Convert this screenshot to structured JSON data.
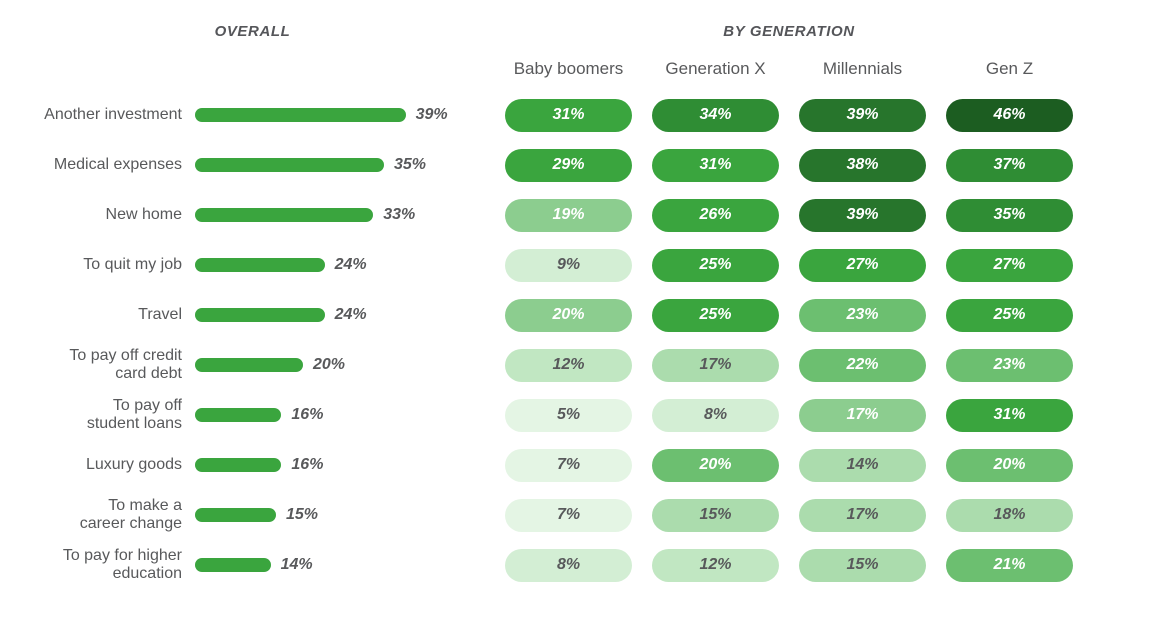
{
  "titles": {
    "overall": "OVERALL",
    "by_generation": "BY GENERATION"
  },
  "display_labels": [
    "Another investment",
    "Medical expenses",
    "New home",
    "To quit my job",
    "Travel",
    "To pay off credit\ncard debt",
    "To pay off\nstudent loans",
    "Luxury goods",
    "To make a\ncareer change",
    "To pay for higher\neducation"
  ],
  "colors": {
    "bar": "#3aa53e",
    "label_text": "#58595b",
    "palette": [
      {
        "bg": "#e4f5e4",
        "text": "#58595b"
      },
      {
        "bg": "#d3eed4",
        "text": "#58595b"
      },
      {
        "bg": "#c1e7c2",
        "text": "#58595b"
      },
      {
        "bg": "#abdcad",
        "text": "#58595b"
      },
      {
        "bg": "#8ccd8f",
        "text": "#ffffff"
      },
      {
        "bg": "#6cbf70",
        "text": "#ffffff"
      },
      {
        "bg": "#3aa53e",
        "text": "#ffffff"
      },
      {
        "bg": "#2f8d34",
        "text": "#ffffff"
      },
      {
        "bg": "#27752c",
        "text": "#ffffff"
      },
      {
        "bg": "#1c5d21",
        "text": "#ffffff"
      }
    ]
  },
  "shades": [
    [
      6,
      7,
      8,
      9
    ],
    [
      6,
      6,
      8,
      7
    ],
    [
      4,
      6,
      8,
      7
    ],
    [
      1,
      6,
      6,
      6
    ],
    [
      4,
      6,
      5,
      6
    ],
    [
      2,
      3,
      5,
      5
    ],
    [
      0,
      1,
      4,
      6
    ],
    [
      0,
      5,
      3,
      5
    ],
    [
      0,
      3,
      3,
      3
    ],
    [
      1,
      2,
      3,
      5
    ]
  ],
  "chart_data": [
    {
      "type": "bar",
      "orientation": "horizontal",
      "title": "OVERALL",
      "categories": [
        "Another investment",
        "Medical expenses",
        "New home",
        "To quit my job",
        "Travel",
        "To pay off credit card debt",
        "To pay off student loans",
        "Luxury goods",
        "To make a career change",
        "To pay for higher education"
      ],
      "values": [
        39,
        35,
        33,
        24,
        24,
        20,
        16,
        16,
        15,
        14
      ],
      "unit": "%",
      "xlim": [
        0,
        46
      ],
      "grid": false,
      "legend": "none"
    },
    {
      "type": "heatmap",
      "title": "BY GENERATION",
      "columns": [
        "Baby boomers",
        "Generation X",
        "Millennials",
        "Gen Z"
      ],
      "rows": [
        "Another investment",
        "Medical expenses",
        "New home",
        "To quit my job",
        "Travel",
        "To pay off credit card debt",
        "To pay off student loans",
        "Luxury goods",
        "To make a career change",
        "To pay for higher education"
      ],
      "values": [
        [
          31,
          34,
          39,
          46
        ],
        [
          29,
          31,
          38,
          37
        ],
        [
          19,
          26,
          39,
          35
        ],
        [
          9,
          25,
          27,
          27
        ],
        [
          20,
          25,
          23,
          25
        ],
        [
          12,
          17,
          22,
          23
        ],
        [
          5,
          8,
          17,
          31
        ],
        [
          7,
          20,
          14,
          20
        ],
        [
          7,
          15,
          17,
          18
        ],
        [
          8,
          12,
          15,
          21
        ]
      ],
      "unit": "%",
      "colorscale": "light green (low) to dark green (high)"
    }
  ]
}
